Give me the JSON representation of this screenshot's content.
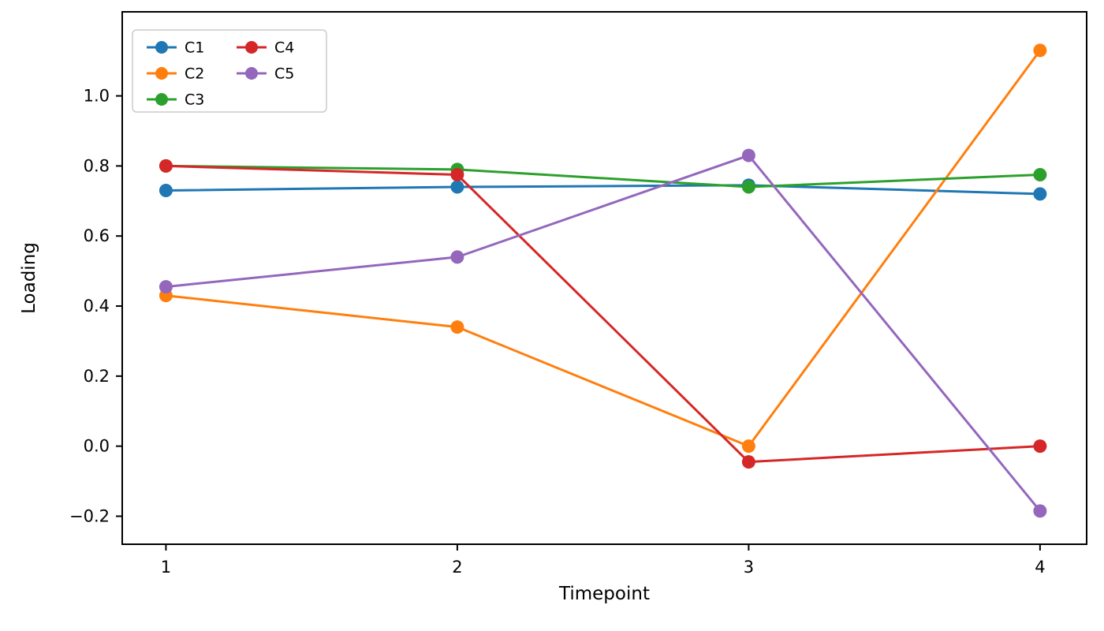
{
  "chart_data": {
    "type": "line",
    "title": "",
    "xlabel": "Timepoint",
    "ylabel": "Loading",
    "x": [
      1,
      2,
      3,
      4
    ],
    "series": [
      {
        "name": "C1",
        "color": "#1f77b4",
        "values": [
          0.73,
          0.74,
          0.745,
          0.72
        ]
      },
      {
        "name": "C2",
        "color": "#ff7f0e",
        "values": [
          0.43,
          0.34,
          0.0,
          1.13
        ]
      },
      {
        "name": "C3",
        "color": "#2ca02c",
        "values": [
          0.8,
          0.79,
          0.74,
          0.775
        ]
      },
      {
        "name": "C4",
        "color": "#d62728",
        "values": [
          0.8,
          0.775,
          -0.045,
          0.0
        ]
      },
      {
        "name": "C5",
        "color": "#9467bd",
        "values": [
          0.455,
          0.54,
          0.83,
          -0.185
        ]
      }
    ],
    "xlim": [
      0.85,
      4.16
    ],
    "ylim": [
      -0.28,
      1.24
    ],
    "xticks": [
      "1",
      "2",
      "3",
      "4"
    ],
    "xtick_values": [
      1,
      2,
      3,
      4
    ],
    "yticks": [
      "−0.2",
      "0.0",
      "0.2",
      "0.4",
      "0.6",
      "0.8",
      "1.0"
    ],
    "ytick_values": [
      -0.2,
      0.0,
      0.2,
      0.4,
      0.6,
      0.8,
      1.0
    ],
    "legend": {
      "position": "upper-left",
      "columns": 2,
      "column_fill": 3,
      "entries": [
        "C1",
        "C2",
        "C3",
        "C4",
        "C5"
      ]
    },
    "grid": false,
    "marker": "circle",
    "line_width": 3,
    "marker_radius": 8.5
  }
}
